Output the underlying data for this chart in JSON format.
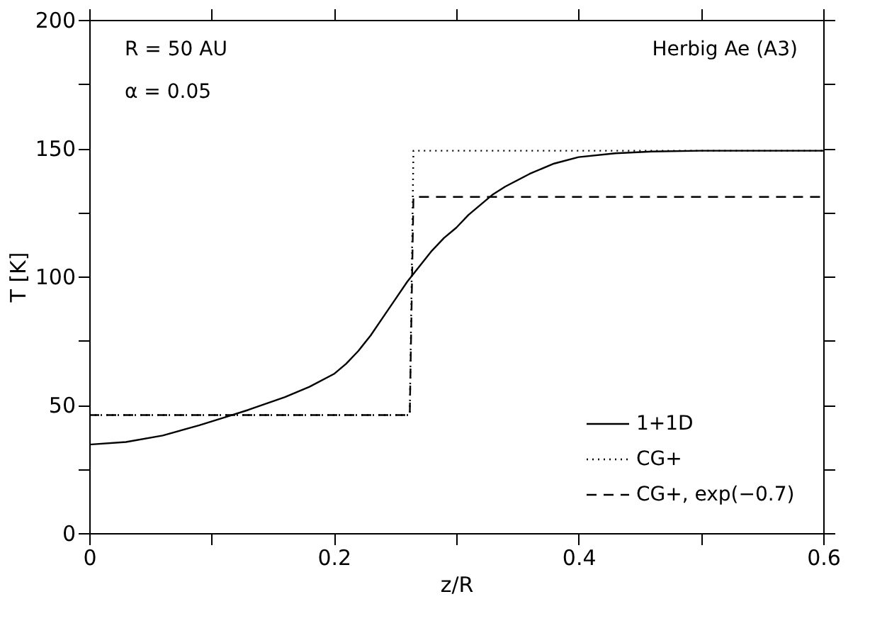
{
  "chart_data": {
    "type": "line",
    "xlabel": "z/R",
    "ylabel": "T [K]",
    "annotations": [
      "R = 50 AU",
      "α = 0.05",
      "Herbig Ae (A3)"
    ],
    "xlim": [
      0,
      0.6
    ],
    "ylim": [
      0,
      200
    ],
    "xticks": [
      0,
      {
        "value": 0.1,
        "label": null
      },
      0.2,
      {
        "value": 0.3,
        "label": null
      },
      0.4,
      {
        "value": 0.5,
        "label": null
      },
      0.6
    ],
    "yticks": [
      0,
      {
        "value": 25,
        "label": null
      },
      50,
      {
        "value": 75,
        "label": null
      },
      100,
      {
        "value": 125,
        "label": null
      },
      150,
      {
        "value": 175,
        "label": null
      },
      200
    ],
    "grid": false,
    "legend": "bottom right",
    "marker": "none",
    "series": [
      {
        "name": "1+1D",
        "color": "#000000",
        "line_style": "solid",
        "x": [
          0,
          0.03,
          0.06,
          0.09,
          0.11,
          0.13,
          0.16,
          0.18,
          0.2,
          0.21,
          0.22,
          0.23,
          0.24,
          0.25,
          0.26,
          0.27,
          0.28,
          0.29,
          0.3,
          0.31,
          0.32,
          0.33,
          0.34,
          0.36,
          0.38,
          0.4,
          0.43,
          0.46,
          0.5,
          0.55,
          0.6
        ],
        "values": [
          34.5,
          35.5,
          38,
          42,
          45,
          48,
          53,
          57,
          62,
          66,
          71,
          77,
          84,
          91,
          98,
          104,
          110,
          115,
          119,
          124,
          128,
          132,
          135,
          140,
          144,
          146.5,
          148,
          148.7,
          149,
          149,
          149
        ]
      },
      {
        "name": "CG+",
        "color": "#000000",
        "line_style": "dotted",
        "x": [
          0,
          0.262,
          0.265,
          0.6
        ],
        "values": [
          46,
          46,
          149,
          149
        ]
      },
      {
        "name": "CG+, exp(−0.7)",
        "color": "#000000",
        "line_style": "dashed",
        "x": [
          0,
          0.262,
          0.265,
          0.6
        ],
        "values": [
          46,
          46,
          131,
          131
        ]
      }
    ]
  }
}
